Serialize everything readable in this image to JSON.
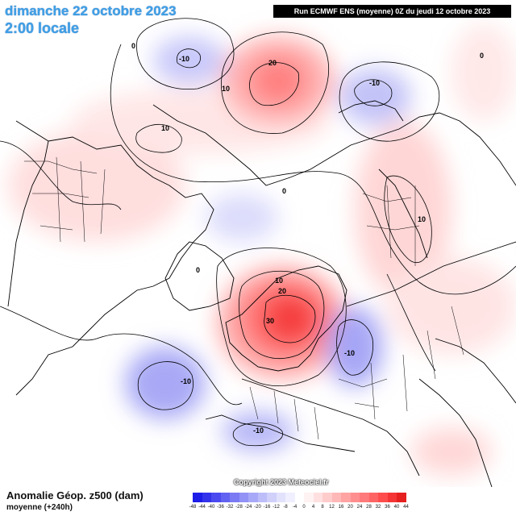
{
  "header": {
    "date": "dimanche 22 octobre 2023",
    "time": "2:00 locale",
    "run": "Run ECMWF ENS (moyenne) 0Z du jeudi 12 octobre 2023"
  },
  "footer": {
    "parameter": "Anomalie Géop. z500 (dam)",
    "subtitle": "moyenne   (+240h)",
    "copyright": "Copyright 2023 Meteociel.fr"
  },
  "legend": {
    "ticks": [
      "-48",
      "-44",
      "-40",
      "-36",
      "-32",
      "-28",
      "-24",
      "-20",
      "-16",
      "-12",
      "-8",
      "-4",
      "0",
      "4",
      "8",
      "12",
      "16",
      "20",
      "24",
      "28",
      "32",
      "36",
      "40",
      "44"
    ],
    "colors": [
      "#1d1de8",
      "#3333ec",
      "#4a4af0",
      "#6262f2",
      "#7a7af4",
      "#9191f6",
      "#a8a8f8",
      "#bdbdf9",
      "#d0d0fb",
      "#e2e2fc",
      "#efefff",
      "#ffffff",
      "#fff2f2",
      "#ffe0e0",
      "#ffcccc",
      "#ffb8b8",
      "#ffa3a3",
      "#ff8f8f",
      "#ff7a7a",
      "#ff6464",
      "#ff4c4c",
      "#f53535",
      "#e61f1f"
    ]
  },
  "contour_labels": [
    {
      "text": "0",
      "id": "l-0-nw"
    },
    {
      "text": "-10",
      "id": "l-neg10-top"
    },
    {
      "text": "20",
      "id": "l-20-bering"
    },
    {
      "text": "10",
      "id": "l-10-bering"
    },
    {
      "text": "-10",
      "id": "l-neg10-siberia"
    },
    {
      "text": "0",
      "id": "l-0-ne"
    },
    {
      "text": "10",
      "id": "l-10-alaska"
    },
    {
      "text": "0",
      "id": "l-0-pole"
    },
    {
      "text": "10",
      "id": "l-10-asia"
    },
    {
      "text": "0",
      "id": "l-0-greenland"
    },
    {
      "text": "10",
      "id": "l-10-scand"
    },
    {
      "text": "20",
      "id": "l-20-scand"
    },
    {
      "text": "30",
      "id": "l-30-scand"
    },
    {
      "text": "-10",
      "id": "l-neg10-russia"
    },
    {
      "text": "-10",
      "id": "l-neg10-atlantic"
    },
    {
      "text": "-10",
      "id": "l-neg10-med"
    }
  ]
}
